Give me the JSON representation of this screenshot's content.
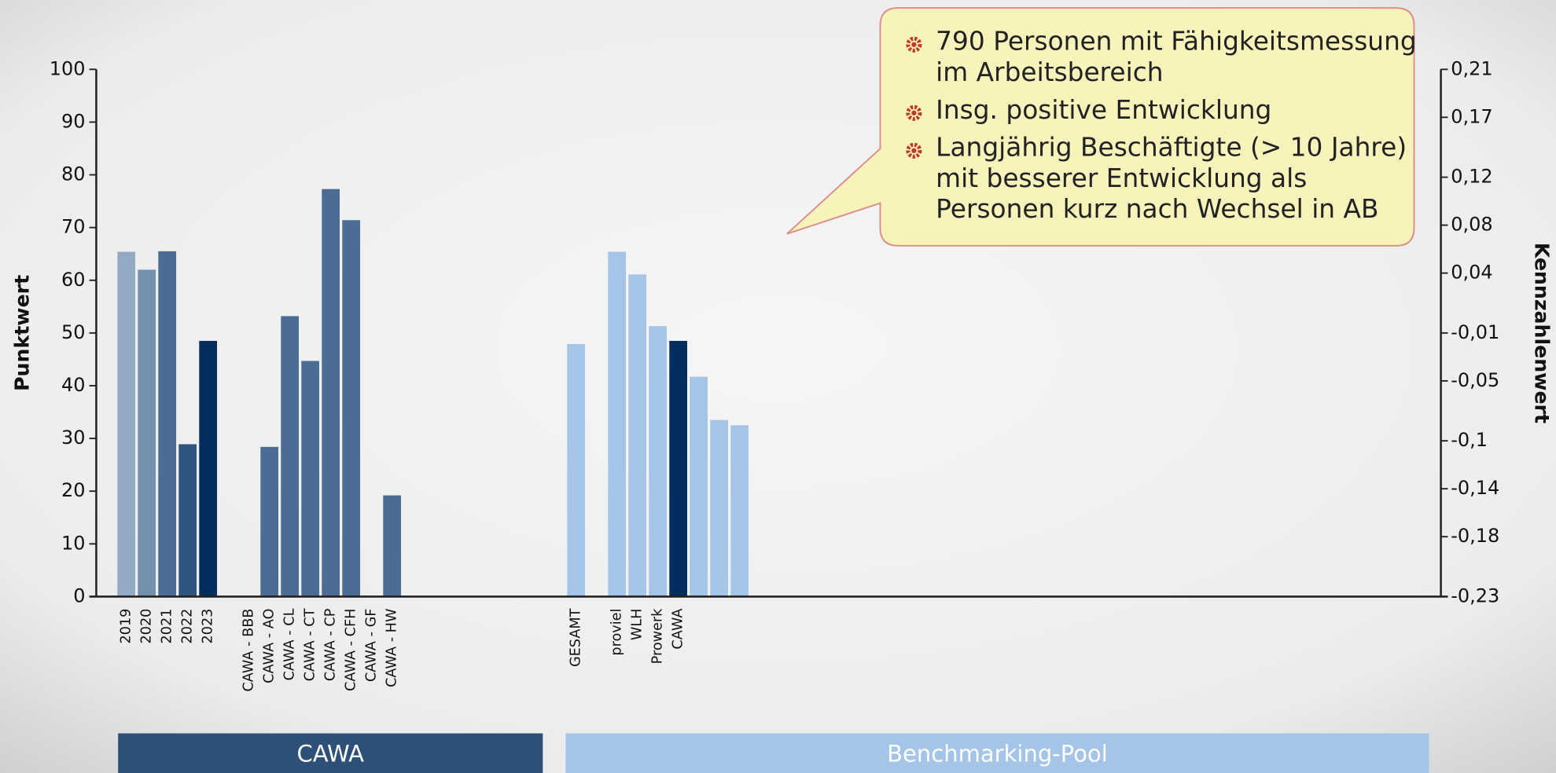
{
  "chart_data": {
    "type": "bar",
    "y_label": "Punktwert",
    "y2_label": "Kennzahlenwert",
    "categories": [
      "2019",
      "2020",
      "2021",
      "2022",
      "2023",
      null,
      "CAWA - BBB",
      "CAWA - AO",
      "CAWA - CL",
      "CAWA - CT",
      "CAWA - CP",
      "CAWA - CFH",
      "CAWA - GF",
      "CAWA - HW",
      null,
      null,
      null,
      null,
      null,
      null,
      null,
      null,
      "GESAMT",
      null,
      "proviel",
      "WLH",
      "Prowerk",
      "CAWA",
      null,
      null,
      null
    ],
    "values": [
      65.4,
      62.0,
      65.5,
      28.9,
      48.5,
      null,
      null,
      28.4,
      53.2,
      44.7,
      77.3,
      71.4,
      null,
      19.2,
      null,
      null,
      null,
      null,
      null,
      null,
      null,
      null,
      47.9,
      null,
      65.4,
      61.1,
      51.3,
      48.5,
      41.7,
      33.5,
      32.5
    ],
    "colors": [
      "#94aac4",
      "#7590ad",
      "#4b6d94",
      "#2e5580",
      "#032d5c",
      null,
      "#4b6d94",
      "#4b6d94",
      "#4b6d94",
      "#4b6d94",
      "#4b6d94",
      "#4b6d94",
      "#4b6d94",
      "#4b6d94",
      null,
      null,
      null,
      null,
      null,
      null,
      null,
      null,
      "#a5c5e8",
      null,
      "#a5c5e8",
      "#a5c5e8",
      "#a5c5e8",
      "#032d5c",
      "#a5c5e8",
      "#a5c5e8",
      "#a5c5e8"
    ],
    "ylim": [
      0,
      100
    ],
    "yticks": [
      0,
      10,
      20,
      30,
      40,
      50,
      60,
      70,
      80,
      90,
      100
    ],
    "y2lim": [
      -0.23,
      0.21
    ],
    "y2ticks": [
      {
        "value": -0.23,
        "label": "-0,23"
      },
      {
        "value": -0.18,
        "label": "-0,18"
      },
      {
        "value": -0.14,
        "label": "-0,14"
      },
      {
        "value": -0.1,
        "label": "-0,1"
      },
      {
        "value": -0.05,
        "label": "-0,05"
      },
      {
        "value": -0.01,
        "label": "-0,01"
      },
      {
        "value": 0.04,
        "label": "0,04"
      },
      {
        "value": 0.08,
        "label": "0,08"
      },
      {
        "value": 0.12,
        "label": "0,12"
      },
      {
        "value": 0.17,
        "label": "0,17"
      },
      {
        "value": 0.21,
        "label": "0,21"
      }
    ],
    "groups": [
      "CAWA",
      "Benchmarking-Pool"
    ],
    "annotations": [
      [
        "790 Personen mit Fähigkeitsmessung",
        "im Arbeitsbereich"
      ],
      [
        "Insg. positive Entwicklung"
      ],
      [
        "Langjährig Beschäftigte (> 10 Jahre)",
        "mit besserer Entwicklung als",
        "Personen kurz nach Wechsel in AB"
      ]
    ]
  }
}
